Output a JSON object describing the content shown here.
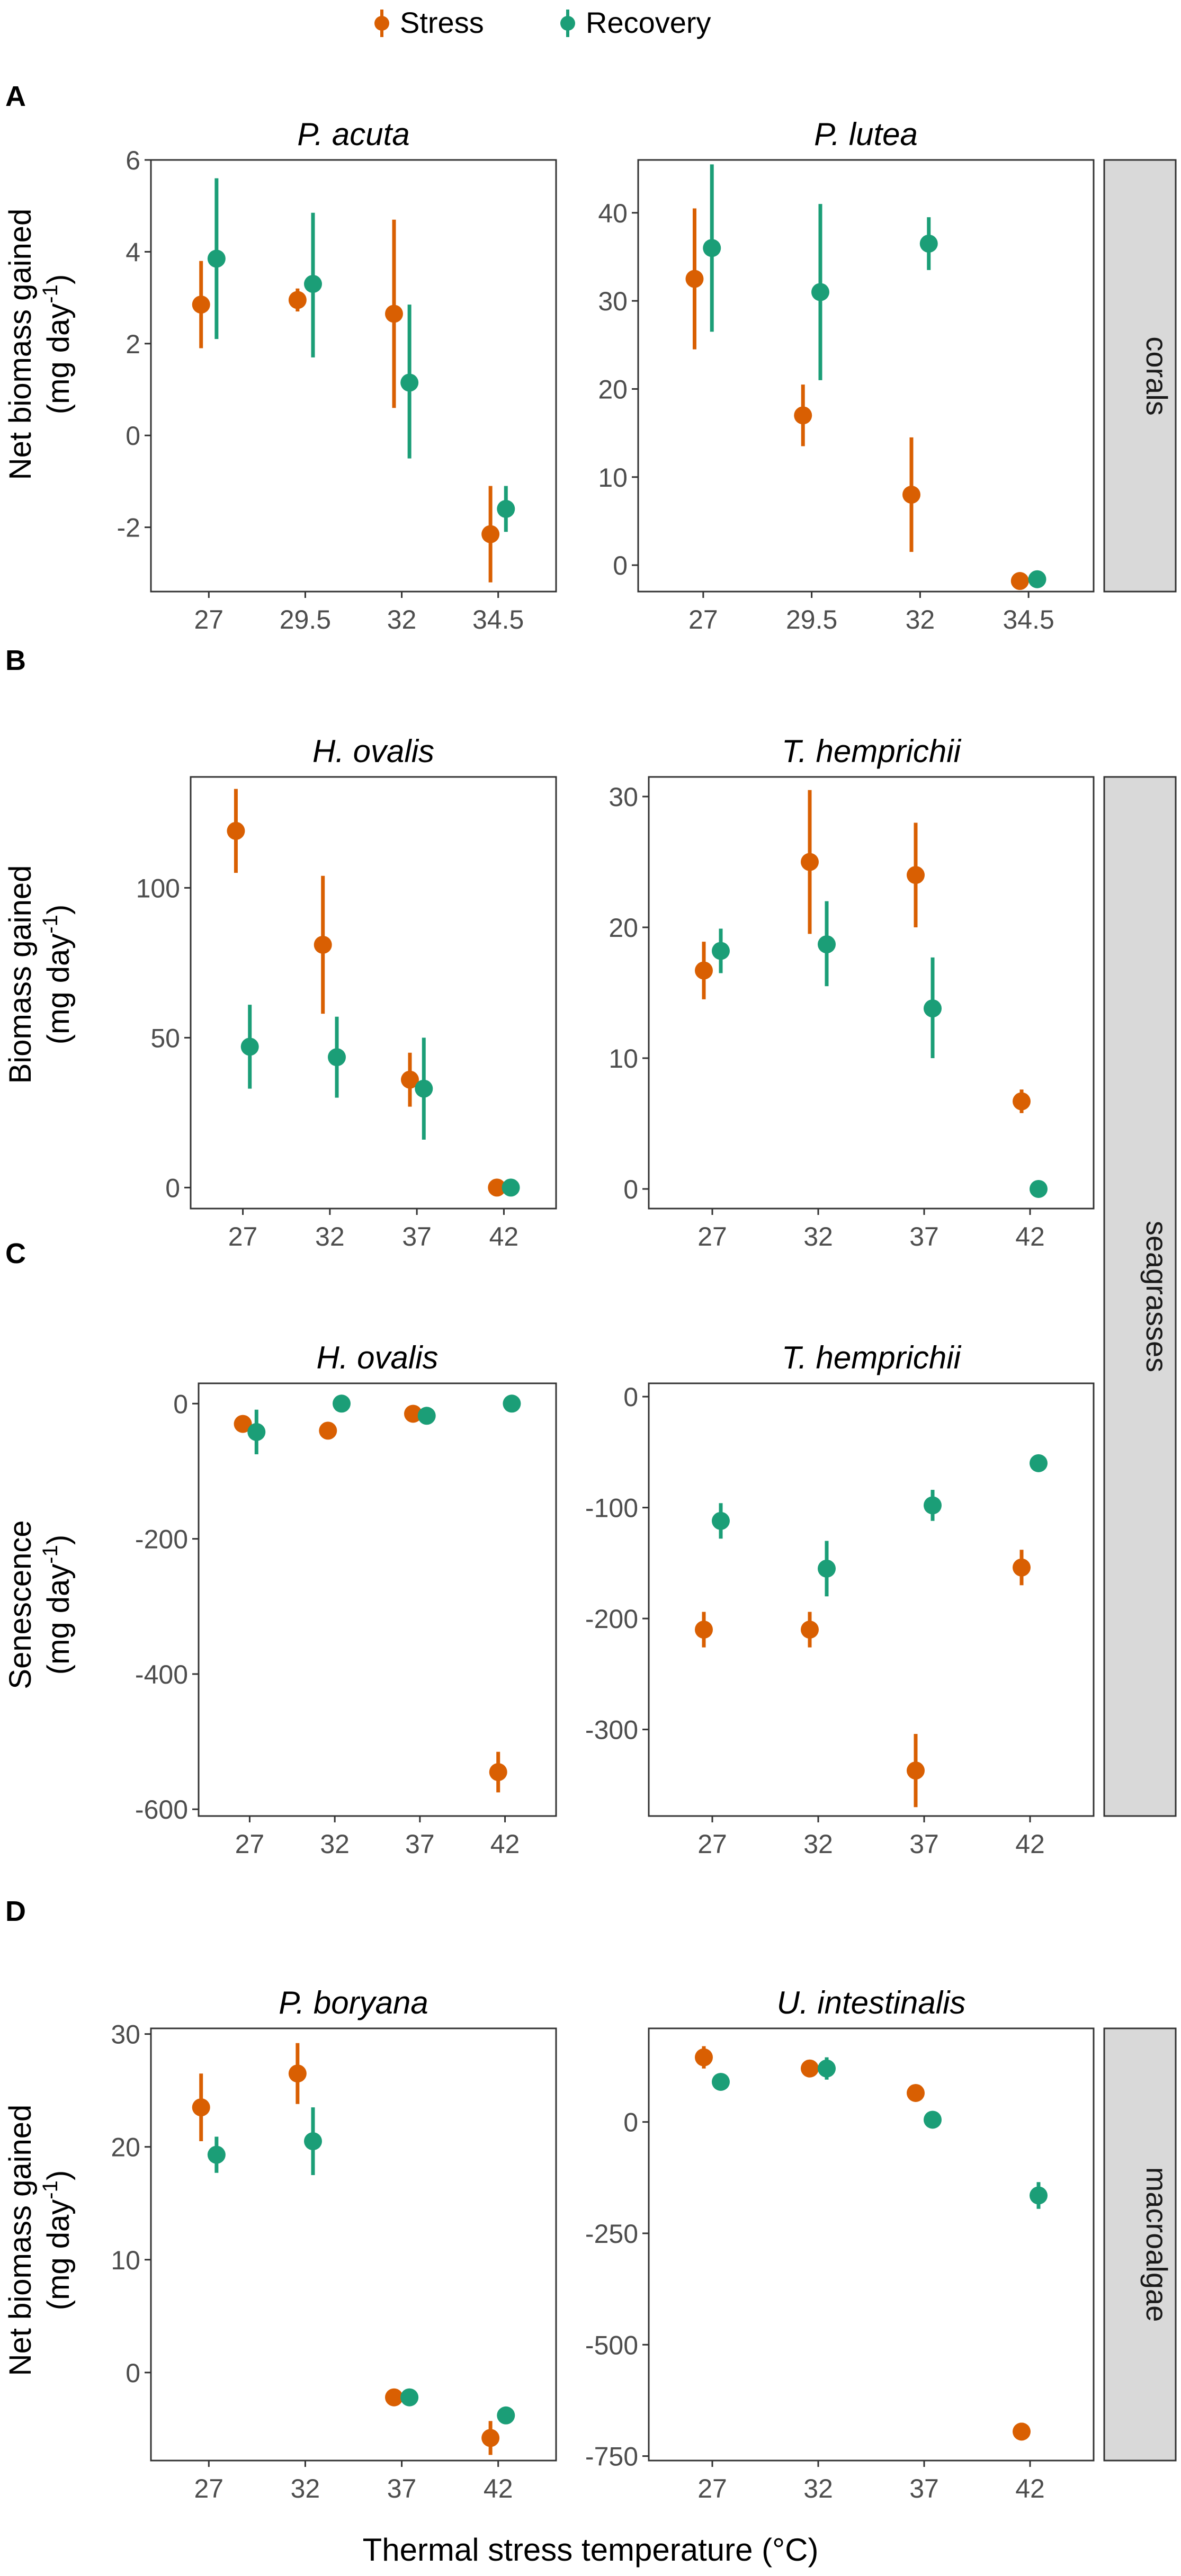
{
  "x_axis_title": "Thermal stress temperature (°C)",
  "legend": {
    "placement": "top-center",
    "entries": [
      {
        "name": "Stress",
        "color": "#D95F02"
      },
      {
        "name": "Recovery",
        "color": "#1B9E77"
      }
    ]
  },
  "strips": [
    "corals",
    "seagrasses",
    "macroalgae"
  ],
  "rows": [
    {
      "letter": "A",
      "ylabel_line1": "Net biomass gained",
      "ylabel_line2": "(mg day"
    },
    {
      "letter": "B",
      "ylabel_line1": "Biomass gained",
      "ylabel_line2": "(mg day"
    },
    {
      "letter": "C",
      "ylabel_line1": "Senescence",
      "ylabel_line2": "(mg day"
    },
    {
      "letter": "D",
      "ylabel_line1": "Net biomass gained",
      "ylabel_line2": "(mg day"
    }
  ],
  "ylabel_sup": "-1",
  "ylabel_close": ")",
  "chart_data": [
    {
      "type": "scatter",
      "title": "P. acuta",
      "row": "A",
      "group": "corals",
      "categories": [
        "27",
        "29.5",
        "32",
        "34.5"
      ],
      "ylim": [
        -3.4,
        6
      ],
      "yticks": [
        "-2",
        "0",
        "2",
        "4",
        "6"
      ],
      "series": [
        {
          "name": "Stress",
          "values": [
            2.85,
            2.95,
            2.65,
            -2.15
          ],
          "low": [
            1.9,
            2.7,
            0.6,
            -3.2
          ],
          "high": [
            3.8,
            3.2,
            4.7,
            -1.1
          ]
        },
        {
          "name": "Recovery",
          "values": [
            3.85,
            3.3,
            1.15,
            -1.6
          ],
          "low": [
            2.1,
            1.7,
            -0.5,
            -2.1
          ],
          "high": [
            5.6,
            4.85,
            2.85,
            -1.1
          ]
        }
      ]
    },
    {
      "type": "scatter",
      "title": "P. lutea",
      "row": "A",
      "group": "corals",
      "categories": [
        "27",
        "29.5",
        "32",
        "34.5"
      ],
      "ylim": [
        -3,
        46
      ],
      "yticks": [
        "0",
        "10",
        "20",
        "30",
        "40"
      ],
      "series": [
        {
          "name": "Stress",
          "values": [
            32.5,
            17,
            8,
            -1.8
          ],
          "low": [
            24.5,
            13.5,
            1.5,
            -2.2
          ],
          "high": [
            40.5,
            20.5,
            14.5,
            -1.4
          ]
        },
        {
          "name": "Recovery",
          "values": [
            36,
            31,
            36.5,
            -1.6
          ],
          "low": [
            26.5,
            21,
            33.5,
            -2.0
          ],
          "high": [
            45.5,
            41,
            39.5,
            -1.2
          ]
        }
      ]
    },
    {
      "type": "scatter",
      "title": "H. ovalis",
      "row": "B",
      "group": "seagrasses",
      "categories": [
        "27",
        "32",
        "37",
        "42"
      ],
      "ylim": [
        -7,
        137
      ],
      "yticks": [
        "0",
        "50",
        "100"
      ],
      "series": [
        {
          "name": "Stress",
          "values": [
            119,
            81,
            36,
            0
          ],
          "low": [
            105,
            58,
            27,
            -1
          ],
          "high": [
            133,
            104,
            45,
            1
          ]
        },
        {
          "name": "Recovery",
          "values": [
            47,
            43.5,
            33,
            0
          ],
          "low": [
            33,
            30,
            16,
            -1
          ],
          "high": [
            61,
            57,
            50,
            1
          ]
        }
      ]
    },
    {
      "type": "scatter",
      "title": "T. hemprichii",
      "row": "B",
      "group": "seagrasses",
      "categories": [
        "27",
        "32",
        "37",
        "42"
      ],
      "ylim": [
        -1.5,
        31.5
      ],
      "yticks": [
        "0",
        "10",
        "20",
        "30"
      ],
      "series": [
        {
          "name": "Stress",
          "values": [
            16.7,
            25,
            24,
            6.7
          ],
          "low": [
            14.5,
            19.5,
            20,
            5.8
          ],
          "high": [
            18.9,
            30.5,
            28,
            7.6
          ]
        },
        {
          "name": "Recovery",
          "values": [
            18.2,
            18.7,
            13.8,
            0
          ],
          "low": [
            16.5,
            15.5,
            10,
            -0.3
          ],
          "high": [
            19.9,
            22,
            17.7,
            0.3
          ]
        }
      ]
    },
    {
      "type": "scatter",
      "title": "H. ovalis",
      "row": "C",
      "group": "seagrasses",
      "categories": [
        "27",
        "32",
        "37",
        "42"
      ],
      "ylim": [
        -610,
        30
      ],
      "yticks": [
        "-600",
        "-400",
        "-200",
        "0"
      ],
      "series": [
        {
          "name": "Stress",
          "values": [
            -30,
            -40,
            -15,
            -545
          ],
          "low": [
            -38,
            -48,
            -22,
            -575
          ],
          "high": [
            -22,
            -32,
            -8,
            -515
          ]
        },
        {
          "name": "Recovery",
          "values": [
            -42,
            0,
            -18,
            0
          ],
          "low": [
            -75,
            -5,
            -25,
            -5
          ],
          "high": [
            -9,
            5,
            -11,
            5
          ]
        }
      ]
    },
    {
      "type": "scatter",
      "title": "T. hemprichii",
      "row": "C",
      "group": "seagrasses",
      "categories": [
        "27",
        "32",
        "37",
        "42"
      ],
      "ylim": [
        -378,
        12
      ],
      "yticks": [
        "-300",
        "-200",
        "-100",
        "0"
      ],
      "series": [
        {
          "name": "Stress",
          "values": [
            -210,
            -210,
            -337,
            -154
          ],
          "low": [
            -226,
            -226,
            -370,
            -170
          ],
          "high": [
            -194,
            -194,
            -304,
            -138
          ]
        },
        {
          "name": "Recovery",
          "values": [
            -112,
            -155,
            -98,
            -60
          ],
          "low": [
            -128,
            -180,
            -112,
            -63
          ],
          "high": [
            -96,
            -130,
            -84,
            -57
          ]
        }
      ]
    },
    {
      "type": "scatter",
      "title": "P. boryana",
      "row": "D",
      "group": "macroalgae",
      "categories": [
        "27",
        "32",
        "37",
        "42"
      ],
      "ylim": [
        -7.8,
        30.5
      ],
      "yticks": [
        "0",
        "10",
        "20",
        "30"
      ],
      "series": [
        {
          "name": "Stress",
          "values": [
            23.5,
            26.5,
            -2.2,
            -5.8
          ],
          "low": [
            20.5,
            23.8,
            -2.8,
            -7.3
          ],
          "high": [
            26.5,
            29.2,
            -1.6,
            -4.3
          ]
        },
        {
          "name": "Recovery",
          "values": [
            19.3,
            20.5,
            -2.2,
            -3.8
          ],
          "low": [
            17.7,
            17.5,
            -2.8,
            -4.5
          ],
          "high": [
            20.9,
            23.5,
            -1.6,
            -3.1
          ]
        }
      ]
    },
    {
      "type": "scatter",
      "title": "U. intestinalis",
      "row": "D",
      "group": "macroalgae",
      "categories": [
        "27",
        "32",
        "37",
        "42"
      ],
      "ylim": [
        -760,
        210
      ],
      "yticks": [
        "-750",
        "-500",
        "-250",
        "0"
      ],
      "series": [
        {
          "name": "Stress",
          "values": [
            145,
            120,
            65,
            -695
          ],
          "low": [
            120,
            110,
            55,
            -715
          ],
          "high": [
            170,
            130,
            75,
            -675
          ]
        },
        {
          "name": "Recovery",
          "values": [
            90,
            120,
            5,
            -165
          ],
          "low": [
            80,
            95,
            -5,
            -195
          ],
          "high": [
            100,
            145,
            15,
            -135
          ]
        }
      ]
    }
  ]
}
